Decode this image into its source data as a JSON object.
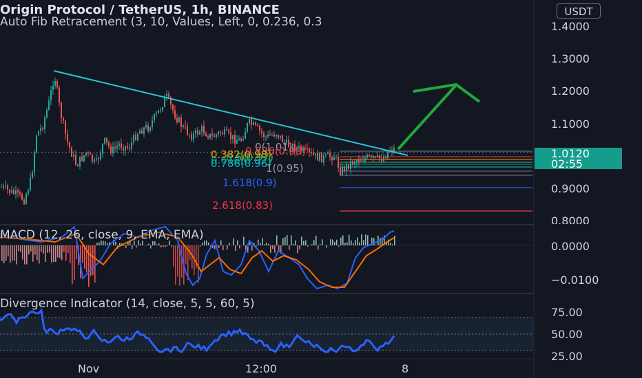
{
  "header": {
    "symbol_line": "Origin Protocol / TetherUS, 1h, BINANCE",
    "indicator_line": "Auto Fib Retracement (3, 10, Values, Left, 0, 0.236, 0.3"
  },
  "price_axis": {
    "currency": "USDT",
    "labels": [
      "1.4000",
      "1.3000",
      "1.2000",
      "1.1000",
      "0.9000",
      "0.8000"
    ],
    "current_price": "1.0120",
    "countdown": "02:55"
  },
  "fib_levels": {
    "labels": [
      "0(1.01)",
      "0.236(0.99)",
      "0.382(0.98)",
      "0.5(0.97)",
      "0.618(0.97)",
      "0.786(0.96)",
      "1(0.95)"
    ],
    "ext_1618": "1.618(0.9)",
    "ext_2618": "2.618(0.83)"
  },
  "macd": {
    "label": "MACD (12, 26, close, 9, EMA, EMA)",
    "axis": [
      "0.0000",
      "−0.0100"
    ]
  },
  "divergence": {
    "label": "Divergence Indicator (14, close, 5, 5, 60, 5)",
    "axis": [
      "75.00",
      "50.00",
      "25.00"
    ]
  },
  "time_axis": {
    "labels": [
      "Nov",
      "12:00",
      "8"
    ]
  },
  "colors": {
    "background": "#131722",
    "up": "#26a69a",
    "down": "#ef5350",
    "trendline": "#26c6da",
    "arrow": "#22a83a",
    "macd": "#2962ff",
    "signal": "#ff6d00",
    "divergence": "#2962ff",
    "fib_ext_1618": "#2962ff",
    "fib_ext_2618": "#f23645"
  }
}
